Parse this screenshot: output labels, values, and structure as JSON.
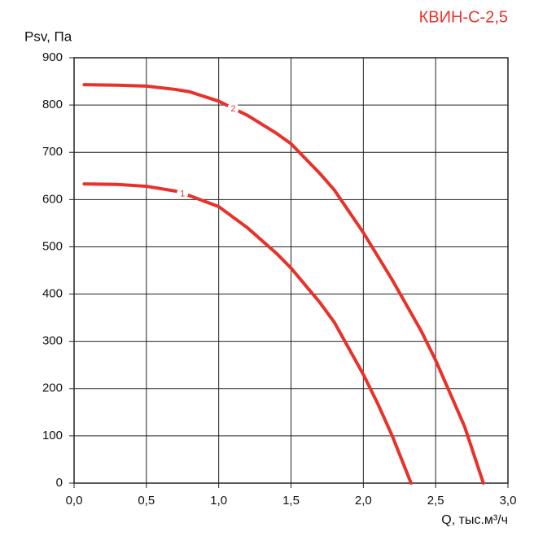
{
  "chart_data": {
    "type": "line",
    "title": "КВИН-С-2,5",
    "y_label": "Psv, Па",
    "x_label": "Q, тыс.м³/ч",
    "series": [
      {
        "name": "1",
        "color": "#e8312a",
        "x": [
          0.07,
          0.3,
          0.5,
          0.7,
          0.8,
          1.0,
          1.2,
          1.4,
          1.5,
          1.7,
          1.8,
          2.0,
          2.1,
          2.2,
          2.33
        ],
        "values": [
          633,
          632,
          628,
          618,
          608,
          585,
          540,
          486,
          455,
          382,
          340,
          230,
          168,
          100,
          0
        ]
      },
      {
        "name": "2",
        "color": "#e8312a",
        "x": [
          0.07,
          0.3,
          0.5,
          0.7,
          0.8,
          1.0,
          1.2,
          1.4,
          1.5,
          1.7,
          1.8,
          2.0,
          2.2,
          2.4,
          2.5,
          2.7,
          2.83
        ],
        "values": [
          843,
          842,
          840,
          833,
          828,
          808,
          778,
          740,
          718,
          655,
          620,
          530,
          430,
          322,
          260,
          120,
          0
        ]
      }
    ],
    "xlim": [
      0,
      3.0
    ],
    "xticks": [
      {
        "value": 0,
        "label": "0,0"
      },
      {
        "value": 0.5,
        "label": "0,5"
      },
      {
        "value": 1.0,
        "label": "1,0"
      },
      {
        "value": 1.5,
        "label": "1,5"
      },
      {
        "value": 2.0,
        "label": "2,0"
      },
      {
        "value": 2.5,
        "label": "2,5"
      },
      {
        "value": 3.0,
        "label": "3,0"
      }
    ],
    "ylim": [
      0,
      900
    ],
    "yticks": [
      0,
      100,
      200,
      300,
      400,
      500,
      600,
      700,
      800,
      900
    ],
    "grid": true
  }
}
